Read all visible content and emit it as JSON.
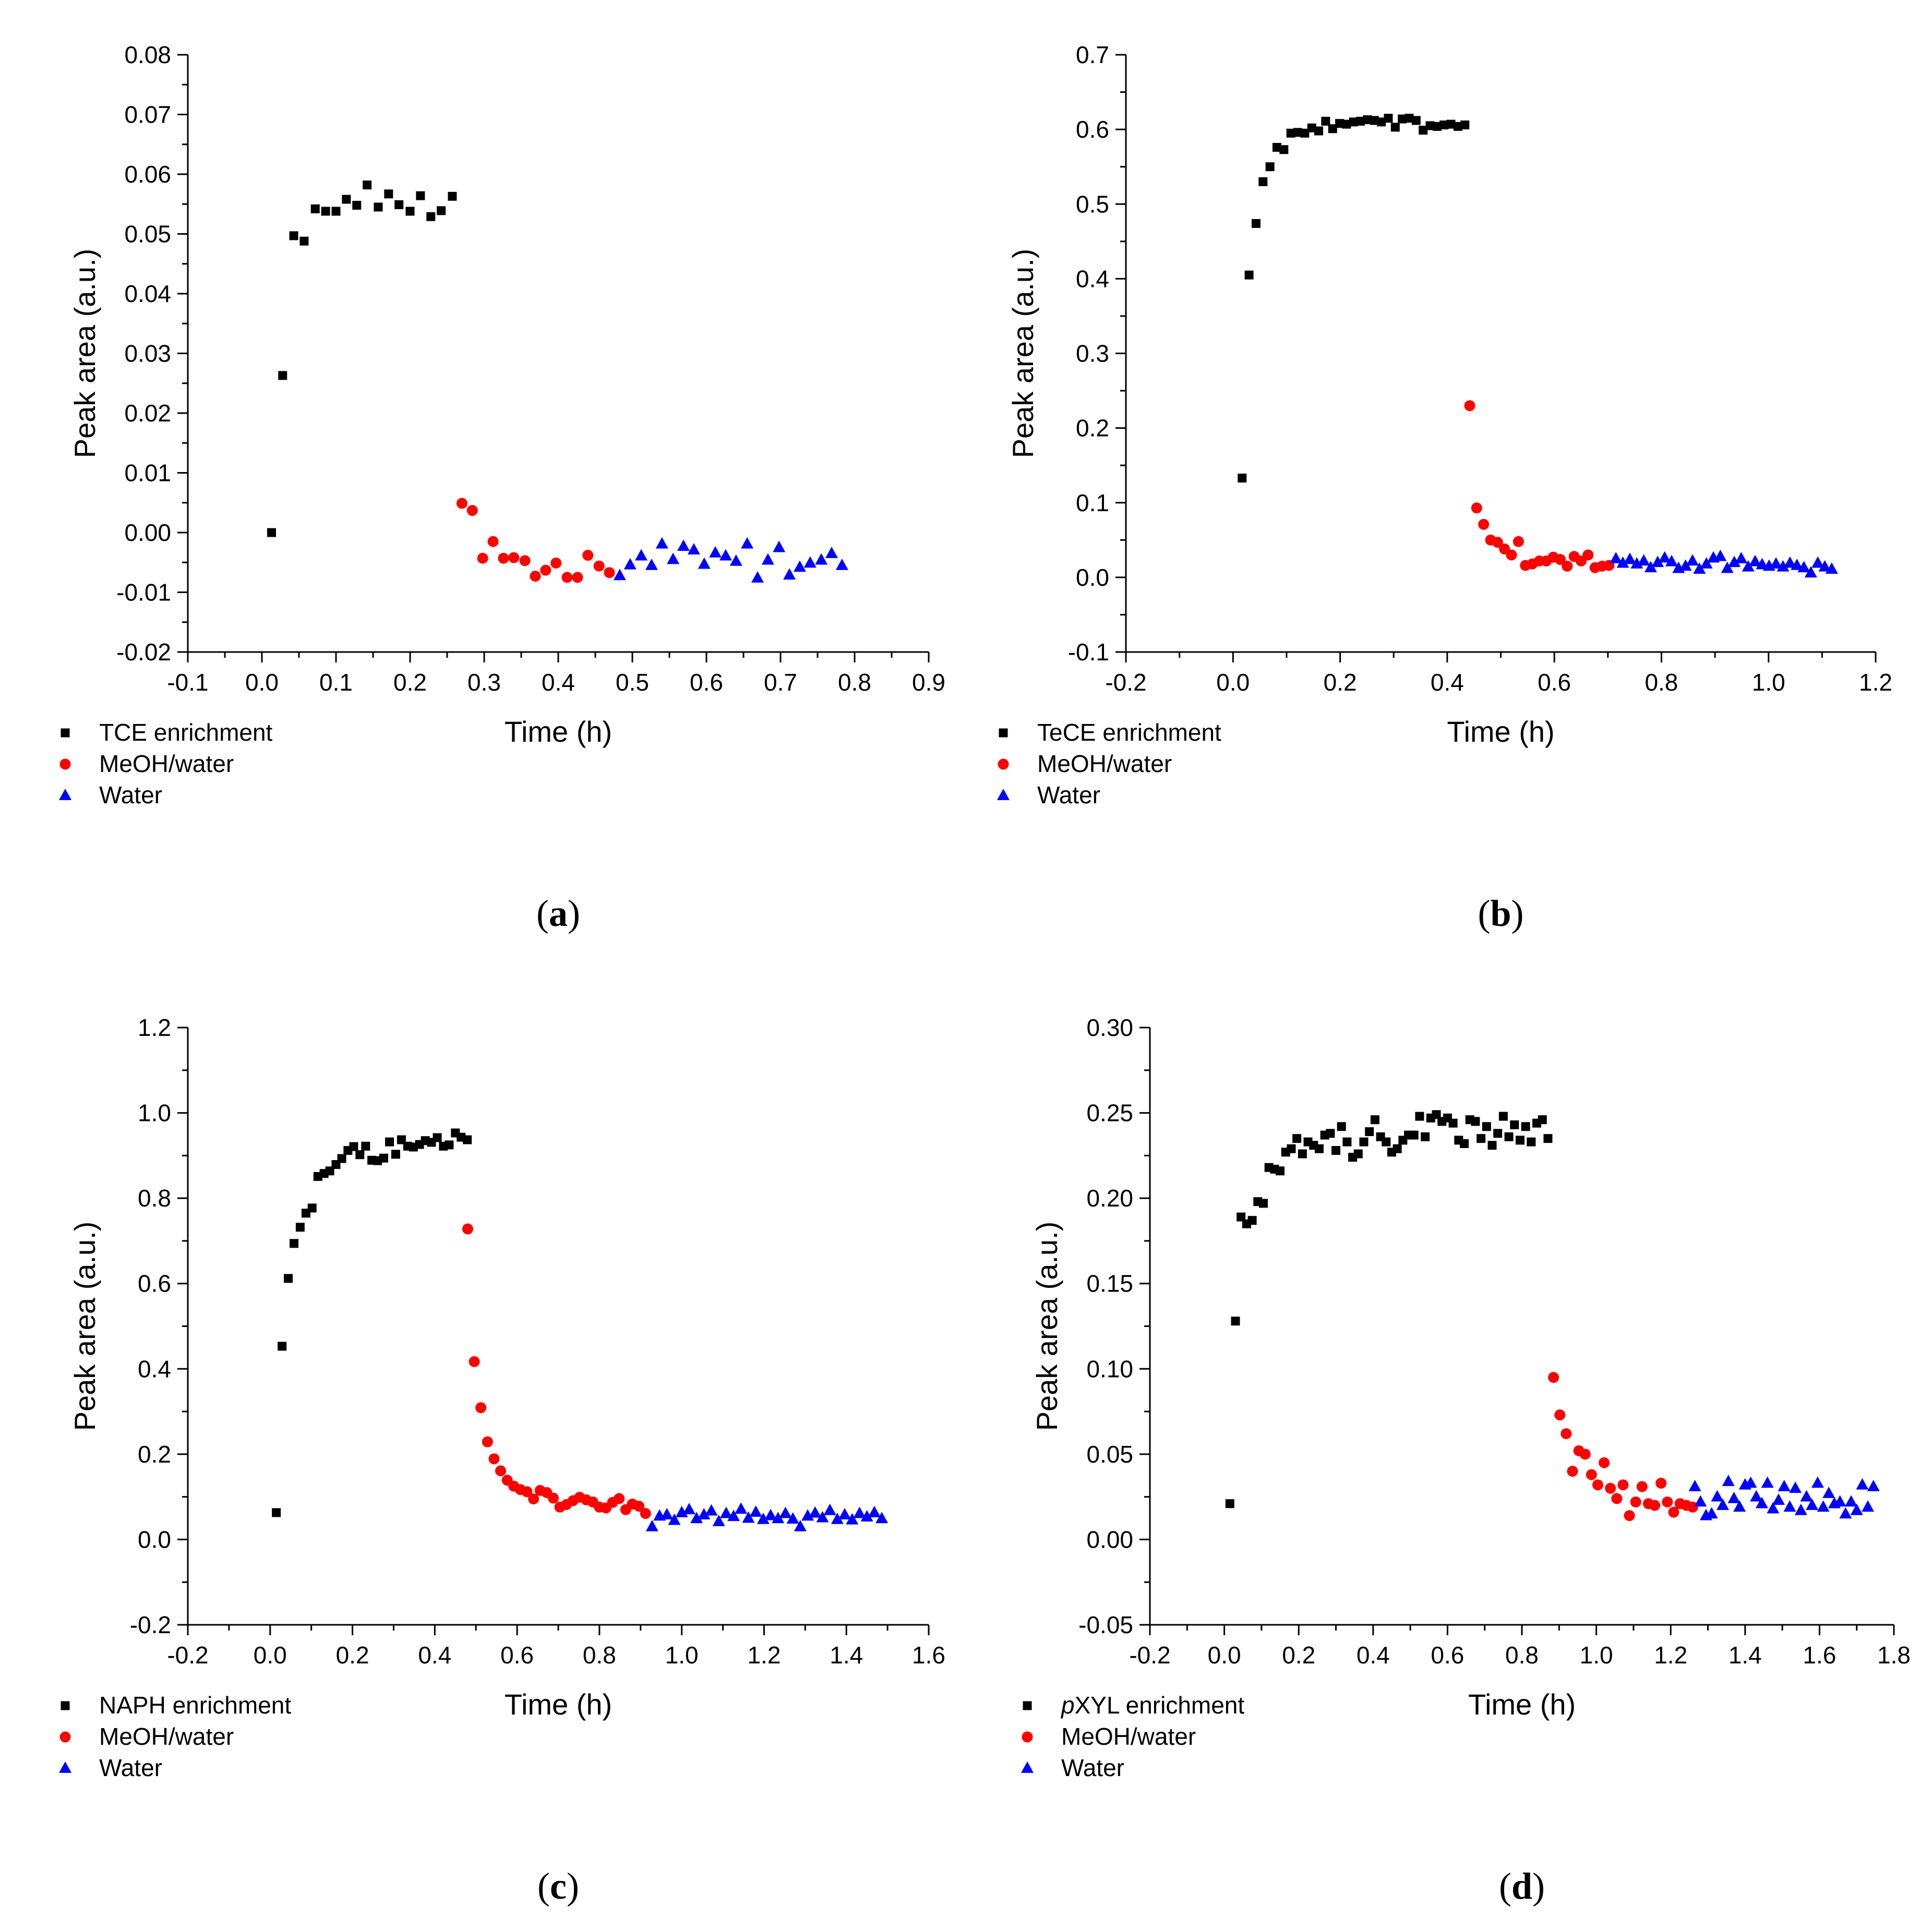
{
  "chart_data": [
    {
      "panel": "(a)",
      "panel_letter": "a",
      "type": "scatter",
      "xlabel": "Time (h)",
      "ylabel": "Peak area (a.u.)",
      "xlim": [
        -0.1,
        0.9
      ],
      "ylim": [
        -0.02,
        0.08
      ],
      "xticks": [
        -0.1,
        0.0,
        0.1,
        0.2,
        0.3,
        0.4,
        0.5,
        0.6,
        0.7,
        0.8,
        0.9
      ],
      "yticks": [
        -0.02,
        -0.01,
        0.0,
        0.01,
        0.02,
        0.03,
        0.04,
        0.05,
        0.06,
        0.07,
        0.08
      ],
      "xtick_labels": [
        "-0.1",
        "0.0",
        "0.1",
        "0.2",
        "0.3",
        "0.4",
        "0.5",
        "0.6",
        "0.7",
        "0.8",
        "0.9"
      ],
      "ytick_labels": [
        "-0.02",
        "-0.01",
        "0.00",
        "0.01",
        "0.02",
        "0.03",
        "0.04",
        "0.05",
        "0.06",
        "0.07",
        "0.08"
      ],
      "series": [
        {
          "name": "TCE enrichment",
          "label_prefix": "",
          "label_suffix": "TCE enrichment",
          "marker": "square",
          "color": "#000000",
          "x": [
            0.013,
            0.028,
            0.043,
            0.057,
            0.072,
            0.086,
            0.1,
            0.114,
            0.128,
            0.142,
            0.157,
            0.171,
            0.185,
            0.2,
            0.214,
            0.228,
            0.242,
            0.257
          ],
          "y": [
            0.0,
            0.0263,
            0.0497,
            0.0488,
            0.0542,
            0.0538,
            0.0538,
            0.0558,
            0.0548,
            0.0582,
            0.0545,
            0.0567,
            0.0549,
            0.0538,
            0.0564,
            0.0529,
            0.0539,
            0.0563
          ]
        },
        {
          "name": "MeOH/water",
          "label_prefix": "",
          "label_suffix": "MeOH/water",
          "marker": "circle",
          "color": "#ff0000",
          "x": [
            0.27,
            0.284,
            0.298,
            0.312,
            0.326,
            0.34,
            0.355,
            0.369,
            0.383,
            0.397,
            0.412,
            0.426,
            0.44,
            0.455,
            0.469
          ],
          "y": [
            0.0049,
            0.0037,
            -0.0043,
            -0.0015,
            -0.0043,
            -0.0042,
            -0.0047,
            -0.0073,
            -0.0063,
            -0.0051,
            -0.0075,
            -0.0075,
            -0.0038,
            -0.0056,
            -0.0067
          ]
        },
        {
          "name": "Water",
          "label_prefix": "",
          "label_suffix": "Water",
          "marker": "triangle",
          "color": "#0000ff",
          "x": [
            0.483,
            0.497,
            0.512,
            0.526,
            0.54,
            0.555,
            0.569,
            0.583,
            0.597,
            0.612,
            0.626,
            0.64,
            0.655,
            0.669,
            0.683,
            0.698,
            0.712,
            0.726,
            0.74,
            0.755,
            0.769,
            0.783
          ],
          "y": [
            -0.0072,
            -0.0054,
            -0.0039,
            -0.0055,
            -0.0019,
            -0.0045,
            -0.0023,
            -0.0029,
            -0.0053,
            -0.0034,
            -0.0039,
            -0.0048,
            -0.0019,
            -0.0076,
            -0.0046,
            -0.0025,
            -0.0071,
            -0.0058,
            -0.0051,
            -0.0046,
            -0.0035,
            -0.0055
          ]
        }
      ]
    },
    {
      "panel": "(b)",
      "panel_letter": "b",
      "type": "scatter",
      "xlabel": "Time (h)",
      "ylabel": "Peak area (a.u.)",
      "xlim": [
        -0.2,
        1.2
      ],
      "ylim": [
        -0.1,
        0.7
      ],
      "xticks": [
        -0.2,
        0.0,
        0.2,
        0.4,
        0.6,
        0.8,
        1.0,
        1.2
      ],
      "yticks": [
        -0.1,
        0.0,
        0.1,
        0.2,
        0.3,
        0.4,
        0.5,
        0.6,
        0.7
      ],
      "xtick_labels": [
        "-0.2",
        "0.0",
        "0.2",
        "0.4",
        "0.6",
        "0.8",
        "1.0",
        "1.2"
      ],
      "ytick_labels": [
        "-0.1",
        "0.0",
        "0.1",
        "0.2",
        "0.3",
        "0.4",
        "0.5",
        "0.6",
        "0.7"
      ],
      "series": [
        {
          "name": "TeCE enrichment",
          "label_prefix": "",
          "label_suffix": "TeCE enrichment",
          "marker": "square",
          "color": "#000000",
          "x": [
            0.017,
            0.03,
            0.043,
            0.056,
            0.069,
            0.082,
            0.095,
            0.108,
            0.121,
            0.134,
            0.147,
            0.16,
            0.173,
            0.186,
            0.199,
            0.212,
            0.225,
            0.238,
            0.251,
            0.264,
            0.277,
            0.29,
            0.303,
            0.316,
            0.329,
            0.342,
            0.355,
            0.368,
            0.381,
            0.394,
            0.407,
            0.42,
            0.433
          ],
          "y": [
            0.133,
            0.405,
            0.474,
            0.53,
            0.55,
            0.576,
            0.573,
            0.595,
            0.596,
            0.595,
            0.602,
            0.598,
            0.611,
            0.601,
            0.608,
            0.607,
            0.61,
            0.611,
            0.613,
            0.612,
            0.61,
            0.615,
            0.603,
            0.614,
            0.615,
            0.612,
            0.599,
            0.605,
            0.604,
            0.606,
            0.607,
            0.604,
            0.606
          ]
        },
        {
          "name": "MeOH/water",
          "label_prefix": "",
          "label_suffix": "MeOH/water",
          "marker": "circle",
          "color": "#ff0000",
          "x": [
            0.442,
            0.455,
            0.468,
            0.481,
            0.494,
            0.507,
            0.52,
            0.533,
            0.546,
            0.559,
            0.572,
            0.585,
            0.598,
            0.611,
            0.624,
            0.637,
            0.65,
            0.663,
            0.676,
            0.689,
            0.702
          ],
          "y": [
            0.23,
            0.093,
            0.071,
            0.05,
            0.047,
            0.038,
            0.03,
            0.048,
            0.016,
            0.018,
            0.022,
            0.022,
            0.027,
            0.024,
            0.015,
            0.028,
            0.022,
            0.03,
            0.013,
            0.015,
            0.016
          ]
        },
        {
          "name": "Water",
          "label_prefix": "",
          "label_suffix": "Water",
          "marker": "triangle",
          "color": "#0000ff",
          "x": [
            0.715,
            0.728,
            0.741,
            0.754,
            0.767,
            0.78,
            0.793,
            0.806,
            0.819,
            0.832,
            0.845,
            0.858,
            0.871,
            0.884,
            0.897,
            0.91,
            0.923,
            0.936,
            0.949,
            0.962,
            0.975,
            0.988,
            1.001,
            1.014,
            1.027,
            1.04,
            1.053,
            1.066,
            1.079,
            1.092,
            1.105,
            1.118
          ],
          "y": [
            0.025,
            0.019,
            0.024,
            0.018,
            0.022,
            0.013,
            0.02,
            0.026,
            0.021,
            0.012,
            0.015,
            0.022,
            0.011,
            0.018,
            0.026,
            0.028,
            0.012,
            0.02,
            0.025,
            0.014,
            0.021,
            0.017,
            0.015,
            0.018,
            0.014,
            0.019,
            0.016,
            0.013,
            0.006,
            0.019,
            0.014,
            0.011
          ]
        }
      ]
    },
    {
      "panel": "(c)",
      "panel_letter": "c",
      "type": "scatter",
      "xlabel": "Time (h)",
      "ylabel": "Peak area (a.u.)",
      "xlim": [
        -0.2,
        1.6
      ],
      "ylim": [
        -0.2,
        1.2
      ],
      "xticks": [
        -0.2,
        0.0,
        0.2,
        0.4,
        0.6,
        0.8,
        1.0,
        1.2,
        1.4,
        1.6
      ],
      "yticks": [
        -0.2,
        0.0,
        0.2,
        0.4,
        0.6,
        0.8,
        1.0,
        1.2
      ],
      "xtick_labels": [
        "-0.2",
        "0.0",
        "0.2",
        "0.4",
        "0.6",
        "0.8",
        "1.0",
        "1.2",
        "1.4",
        "1.6"
      ],
      "ytick_labels": [
        "-0.2",
        "0.0",
        "0.2",
        "0.4",
        "0.6",
        "0.8",
        "1.0",
        "1.2"
      ],
      "series": [
        {
          "name": "NAPH enrichment",
          "label_prefix": "",
          "label_suffix": "NAPH enrichment",
          "marker": "square",
          "color": "#000000",
          "x": [
            0.015,
            0.029,
            0.044,
            0.058,
            0.073,
            0.087,
            0.102,
            0.116,
            0.131,
            0.145,
            0.16,
            0.174,
            0.189,
            0.203,
            0.218,
            0.232,
            0.247,
            0.261,
            0.276,
            0.29,
            0.305,
            0.319,
            0.334,
            0.348,
            0.363,
            0.377,
            0.392,
            0.406,
            0.421,
            0.435,
            0.45,
            0.464,
            0.479
          ],
          "y": [
            0.063,
            0.453,
            0.612,
            0.694,
            0.732,
            0.765,
            0.777,
            0.851,
            0.858,
            0.864,
            0.879,
            0.893,
            0.912,
            0.921,
            0.902,
            0.922,
            0.889,
            0.888,
            0.894,
            0.932,
            0.903,
            0.937,
            0.922,
            0.92,
            0.926,
            0.935,
            0.931,
            0.942,
            0.922,
            0.925,
            0.953,
            0.943,
            0.937
          ]
        },
        {
          "name": "MeOH/water",
          "label_prefix": "",
          "label_suffix": "MeOH/water",
          "marker": "circle",
          "color": "#ff0000",
          "x": [
            0.48,
            0.496,
            0.512,
            0.528,
            0.544,
            0.56,
            0.576,
            0.592,
            0.608,
            0.624,
            0.64,
            0.656,
            0.672,
            0.688,
            0.704,
            0.72,
            0.736,
            0.752,
            0.768,
            0.784,
            0.8,
            0.816,
            0.832,
            0.848,
            0.864,
            0.88,
            0.896,
            0.912
          ],
          "y": [
            0.728,
            0.417,
            0.309,
            0.229,
            0.189,
            0.161,
            0.139,
            0.125,
            0.117,
            0.112,
            0.095,
            0.115,
            0.11,
            0.097,
            0.076,
            0.082,
            0.091,
            0.099,
            0.093,
            0.088,
            0.076,
            0.074,
            0.087,
            0.096,
            0.07,
            0.083,
            0.078,
            0.061
          ]
        },
        {
          "name": "Water",
          "label_prefix": "",
          "label_suffix": "Water",
          "marker": "triangle",
          "color": "#0000ff",
          "x": [
            0.928,
            0.946,
            0.964,
            0.982,
            1.0,
            1.018,
            1.036,
            1.054,
            1.072,
            1.09,
            1.108,
            1.126,
            1.144,
            1.162,
            1.18,
            1.198,
            1.216,
            1.234,
            1.252,
            1.27,
            1.288,
            1.306,
            1.324,
            1.342,
            1.36,
            1.378,
            1.396,
            1.414,
            1.432,
            1.45,
            1.468,
            1.486
          ],
          "y": [
            0.03,
            0.055,
            0.058,
            0.045,
            0.063,
            0.07,
            0.049,
            0.058,
            0.067,
            0.042,
            0.061,
            0.054,
            0.071,
            0.05,
            0.064,
            0.047,
            0.056,
            0.049,
            0.061,
            0.048,
            0.03,
            0.055,
            0.062,
            0.051,
            0.068,
            0.047,
            0.058,
            0.046,
            0.061,
            0.053,
            0.063,
            0.049
          ]
        }
      ]
    },
    {
      "panel": "(d)",
      "panel_letter": "d",
      "type": "scatter",
      "xlabel": "Time (h)",
      "ylabel": "Peak area (a.u.)",
      "xlim": [
        -0.2,
        1.8
      ],
      "ylim": [
        -0.05,
        0.3
      ],
      "xticks": [
        -0.2,
        0.0,
        0.2,
        0.4,
        0.6,
        0.8,
        1.0,
        1.2,
        1.4,
        1.6,
        1.8
      ],
      "yticks": [
        -0.05,
        0.0,
        0.05,
        0.1,
        0.15,
        0.2,
        0.25,
        0.3
      ],
      "xtick_labels": [
        "-0.2",
        "0.0",
        "0.2",
        "0.4",
        "0.6",
        "0.8",
        "1.0",
        "1.2",
        "1.4",
        "1.6",
        "1.8"
      ],
      "ytick_labels": [
        "-0.05",
        "0.00",
        "0.05",
        "0.10",
        "0.15",
        "0.20",
        "0.25",
        "0.30"
      ],
      "series": [
        {
          "name": "pXYL enrichment",
          "label_prefix": "p",
          "label_suffix": "XYL enrichment",
          "marker": "square",
          "color": "#000000",
          "x": [
            0.015,
            0.03,
            0.045,
            0.06,
            0.075,
            0.09,
            0.105,
            0.12,
            0.135,
            0.15,
            0.165,
            0.18,
            0.195,
            0.21,
            0.225,
            0.24,
            0.255,
            0.27,
            0.285,
            0.3,
            0.315,
            0.33,
            0.345,
            0.36,
            0.375,
            0.39,
            0.405,
            0.42,
            0.435,
            0.45,
            0.465,
            0.48,
            0.495,
            0.51,
            0.525,
            0.54,
            0.555,
            0.57,
            0.585,
            0.6,
            0.615,
            0.63,
            0.645,
            0.66,
            0.675,
            0.69,
            0.705,
            0.72,
            0.735,
            0.75,
            0.765,
            0.78,
            0.795,
            0.81,
            0.825,
            0.84,
            0.855,
            0.87
          ],
          "y": [
            0.021,
            0.128,
            0.189,
            0.185,
            0.187,
            0.198,
            0.197,
            0.218,
            0.217,
            0.216,
            0.227,
            0.229,
            0.235,
            0.226,
            0.233,
            0.231,
            0.229,
            0.237,
            0.238,
            0.228,
            0.242,
            0.233,
            0.224,
            0.226,
            0.233,
            0.239,
            0.246,
            0.236,
            0.233,
            0.227,
            0.229,
            0.234,
            0.237,
            0.237,
            0.248,
            0.236,
            0.247,
            0.249,
            0.245,
            0.247,
            0.244,
            0.234,
            0.232,
            0.246,
            0.245,
            0.235,
            0.242,
            0.231,
            0.238,
            0.248,
            0.236,
            0.243,
            0.234,
            0.242,
            0.233,
            0.244,
            0.246,
            0.235
          ]
        },
        {
          "name": "MeOH/water",
          "label_prefix": "",
          "label_suffix": "MeOH/water",
          "marker": "circle",
          "color": "#ff0000",
          "x": [
            0.885,
            0.902,
            0.919,
            0.936,
            0.953,
            0.97,
            0.987,
            1.004,
            1.021,
            1.038,
            1.055,
            1.072,
            1.089,
            1.106,
            1.123,
            1.14,
            1.157,
            1.174,
            1.191,
            1.208,
            1.225,
            1.242,
            1.259
          ],
          "y": [
            0.095,
            0.073,
            0.062,
            0.04,
            0.052,
            0.05,
            0.038,
            0.032,
            0.045,
            0.03,
            0.024,
            0.032,
            0.014,
            0.022,
            0.031,
            0.021,
            0.02,
            0.033,
            0.022,
            0.016,
            0.021,
            0.02,
            0.019
          ]
        },
        {
          "name": "Water",
          "label_prefix": "",
          "label_suffix": "Water",
          "marker": "triangle",
          "color": "#0000ff",
          "x": [
            1.265,
            1.28,
            1.295,
            1.31,
            1.325,
            1.34,
            1.355,
            1.37,
            1.385,
            1.4,
            1.415,
            1.43,
            1.445,
            1.46,
            1.475,
            1.49,
            1.505,
            1.52,
            1.535,
            1.55,
            1.565,
            1.58,
            1.595,
            1.61,
            1.625,
            1.64,
            1.655,
            1.67,
            1.685,
            1.7,
            1.715,
            1.73,
            1.745
          ],
          "y": [
            0.031,
            0.022,
            0.014,
            0.015,
            0.025,
            0.02,
            0.034,
            0.024,
            0.019,
            0.032,
            0.033,
            0.025,
            0.021,
            0.033,
            0.018,
            0.023,
            0.031,
            0.019,
            0.03,
            0.017,
            0.025,
            0.02,
            0.033,
            0.019,
            0.027,
            0.021,
            0.022,
            0.015,
            0.022,
            0.017,
            0.032,
            0.019,
            0.031
          ]
        }
      ]
    }
  ]
}
